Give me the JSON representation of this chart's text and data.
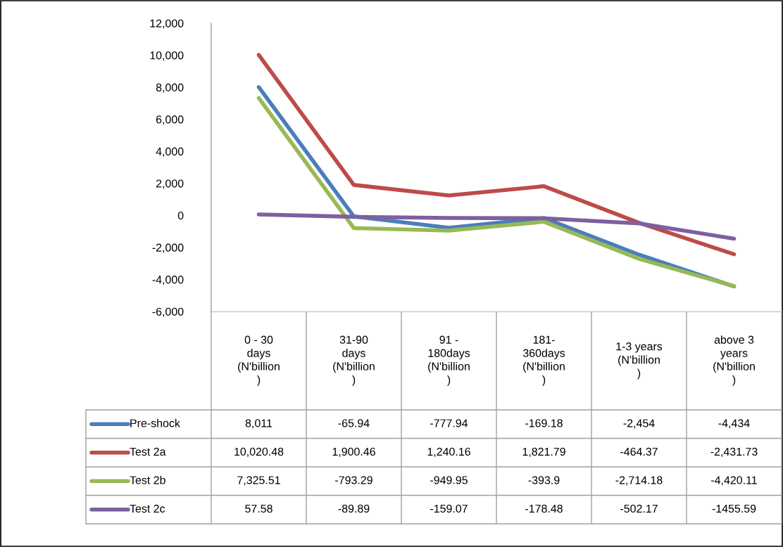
{
  "chart_data": {
    "type": "line",
    "categories": [
      "0 - 30\ndays\n(N'billion\n)",
      "31-90\ndays\n(N'billion\n)",
      "91 -\n180days\n(N'billion\n)",
      "181-\n360days\n(N'billion\n)",
      "1-3 years\n(N'billion\n)",
      "above 3\nyears\n(N'billion\n)"
    ],
    "series": [
      {
        "name": "Pre-shock",
        "color": "#4a7ebb",
        "values": [
          8011,
          -65.94,
          -777.94,
          -169.18,
          -2454,
          -4434
        ],
        "value_labels": [
          "8,011",
          "-65.94",
          "-777.94",
          "-169.18",
          "-2,454",
          "-4,434"
        ]
      },
      {
        "name": "Test 2a",
        "color": "#be4b48",
        "values": [
          10020.48,
          1900.46,
          1240.16,
          1821.79,
          -464.37,
          -2431.73
        ],
        "value_labels": [
          "10,020.48",
          "1,900.46",
          "1,240.16",
          "1,821.79",
          "-464.37",
          "-2,431.73"
        ]
      },
      {
        "name": "Test 2b",
        "color": "#98b954",
        "values": [
          7325.51,
          -793.29,
          -949.95,
          -393.9,
          -2714.18,
          -4420.11
        ],
        "value_labels": [
          "7,325.51",
          "-793.29",
          "-949.95",
          "-393.9",
          "-2,714.18",
          "-4,420.11"
        ]
      },
      {
        "name": "Test 2c",
        "color": "#7d60a0",
        "values": [
          57.58,
          -89.89,
          -159.07,
          -178.48,
          -502.17,
          -1455.59
        ],
        "value_labels": [
          "57.58",
          "-89.89",
          "-159.07",
          "-178.48",
          "-502.17",
          "-1455.59"
        ]
      }
    ],
    "ylim": [
      -6000,
      12000
    ],
    "yticks": [
      {
        "value": -6000,
        "label": "-6,000"
      },
      {
        "value": -4000,
        "label": "-4,000"
      },
      {
        "value": -2000,
        "label": "-2,000"
      },
      0,
      {
        "value": 2000,
        "label": "2,000"
      },
      {
        "value": 4000,
        "label": "4,000"
      },
      {
        "value": 6000,
        "label": "6,000"
      },
      {
        "value": 8000,
        "label": "8,000"
      },
      {
        "value": 10000,
        "label": "10,000"
      },
      {
        "value": 12000,
        "label": "12,000"
      }
    ],
    "grid": false,
    "legend": "left",
    "marker": "none",
    "line_style": "solid"
  }
}
